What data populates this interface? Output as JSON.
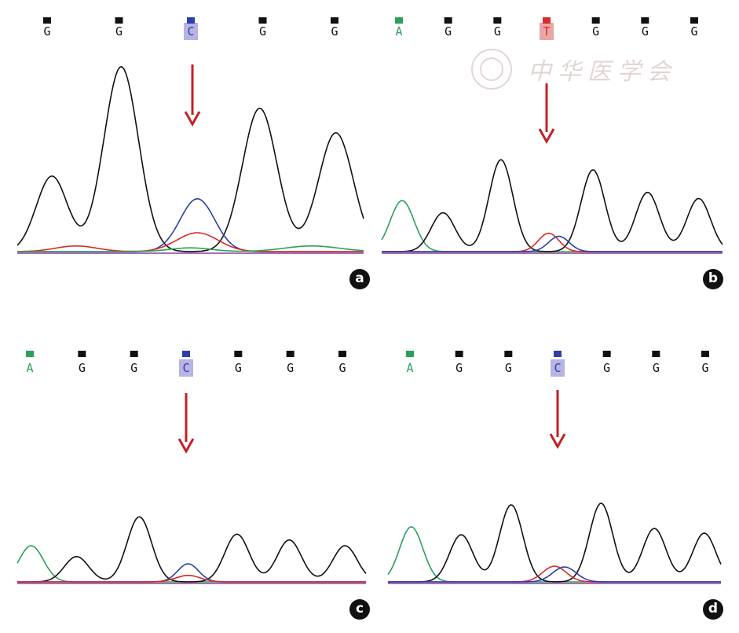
{
  "chart_data": [
    {
      "type": "line",
      "panel": "a",
      "bases": [
        "G",
        "G",
        "C",
        "G",
        "G"
      ],
      "marker_colors": [
        "#111111",
        "#111111",
        "#2c3ea8",
        "#111111",
        "#111111"
      ],
      "highlight_index": 2,
      "highlight_color": "#b7b3e3",
      "arrow_index": 2,
      "peaks": [
        {
          "series": "G",
          "color": "#111111",
          "center": 0.1,
          "height": 0.4,
          "width": 0.045
        },
        {
          "series": "G",
          "color": "#111111",
          "center": 0.3,
          "height": 0.98,
          "width": 0.05
        },
        {
          "series": "G",
          "color": "#111111",
          "center": 0.7,
          "height": 0.76,
          "width": 0.05
        },
        {
          "series": "G",
          "color": "#111111",
          "center": 0.92,
          "height": 0.63,
          "width": 0.05
        },
        {
          "series": "C",
          "color": "#2c3ea8",
          "center": 0.52,
          "height": 0.28,
          "width": 0.05
        },
        {
          "series": "T",
          "color": "#d62b2b",
          "center": 0.52,
          "height": 0.1,
          "width": 0.06
        },
        {
          "series": "T",
          "color": "#d62b2b",
          "center": 0.17,
          "height": 0.03,
          "width": 0.06
        },
        {
          "series": "A",
          "color": "#2aa05a",
          "center": 0.5,
          "height": 0.02,
          "width": 0.06
        },
        {
          "series": "A",
          "color": "#2aa05a",
          "center": 0.85,
          "height": 0.03,
          "width": 0.08
        }
      ]
    },
    {
      "type": "line",
      "panel": "b",
      "bases": [
        "A",
        "G",
        "G",
        "T",
        "G",
        "G",
        "G"
      ],
      "marker_colors": [
        "#2aa05a",
        "#111111",
        "#111111",
        "#d62b2b",
        "#111111",
        "#111111",
        "#111111"
      ],
      "highlight_index": 3,
      "highlight_color": "#e8a6a6",
      "arrow_index": 3,
      "peaks": [
        {
          "series": "A",
          "color": "#2aa05a",
          "center": 0.06,
          "height": 0.5,
          "width": 0.035
        },
        {
          "series": "G",
          "color": "#111111",
          "center": 0.18,
          "height": 0.38,
          "width": 0.035
        },
        {
          "series": "G",
          "color": "#111111",
          "center": 0.35,
          "height": 0.9,
          "width": 0.035
        },
        {
          "series": "G",
          "color": "#111111",
          "center": 0.62,
          "height": 0.8,
          "width": 0.035
        },
        {
          "series": "G",
          "color": "#111111",
          "center": 0.78,
          "height": 0.58,
          "width": 0.035
        },
        {
          "series": "G",
          "color": "#111111",
          "center": 0.93,
          "height": 0.52,
          "width": 0.035
        },
        {
          "series": "T",
          "color": "#d62b2b",
          "center": 0.49,
          "height": 0.18,
          "width": 0.03
        },
        {
          "series": "C",
          "color": "#2c3ea8",
          "center": 0.52,
          "height": 0.15,
          "width": 0.03
        }
      ]
    },
    {
      "type": "line",
      "panel": "c",
      "bases": [
        "A",
        "G",
        "G",
        "C",
        "G",
        "G",
        "G"
      ],
      "marker_colors": [
        "#2aa05a",
        "#111111",
        "#111111",
        "#2c3ea8",
        "#111111",
        "#111111",
        "#111111"
      ],
      "highlight_index": 3,
      "highlight_color": "#b7b3e3",
      "arrow_index": 3,
      "peaks": [
        {
          "series": "A",
          "color": "#2aa05a",
          "center": 0.04,
          "height": 0.5,
          "width": 0.035
        },
        {
          "series": "G",
          "color": "#111111",
          "center": 0.17,
          "height": 0.35,
          "width": 0.035
        },
        {
          "series": "G",
          "color": "#111111",
          "center": 0.35,
          "height": 0.9,
          "width": 0.035
        },
        {
          "series": "G",
          "color": "#111111",
          "center": 0.63,
          "height": 0.66,
          "width": 0.035
        },
        {
          "series": "G",
          "color": "#111111",
          "center": 0.78,
          "height": 0.58,
          "width": 0.035
        },
        {
          "series": "G",
          "color": "#111111",
          "center": 0.94,
          "height": 0.5,
          "width": 0.035
        },
        {
          "series": "C",
          "color": "#2c3ea8",
          "center": 0.49,
          "height": 0.25,
          "width": 0.03
        },
        {
          "series": "T",
          "color": "#d62b2b",
          "center": 0.49,
          "height": 0.09,
          "width": 0.035
        }
      ]
    },
    {
      "type": "line",
      "panel": "d",
      "bases": [
        "A",
        "G",
        "G",
        "C",
        "G",
        "G",
        "G"
      ],
      "marker_colors": [
        "#2aa05a",
        "#111111",
        "#111111",
        "#2c3ea8",
        "#111111",
        "#111111",
        "#111111"
      ],
      "highlight_index": 3,
      "highlight_color": "#b7b3e3",
      "arrow_index": 3,
      "peaks": [
        {
          "series": "A",
          "color": "#2aa05a",
          "center": 0.07,
          "height": 0.7,
          "width": 0.035
        },
        {
          "series": "G",
          "color": "#111111",
          "center": 0.22,
          "height": 0.6,
          "width": 0.035
        },
        {
          "series": "G",
          "color": "#111111",
          "center": 0.37,
          "height": 0.98,
          "width": 0.035
        },
        {
          "series": "G",
          "color": "#111111",
          "center": 0.64,
          "height": 1.0,
          "width": 0.035
        },
        {
          "series": "G",
          "color": "#111111",
          "center": 0.8,
          "height": 0.68,
          "width": 0.035
        },
        {
          "series": "G",
          "color": "#111111",
          "center": 0.95,
          "height": 0.62,
          "width": 0.035
        },
        {
          "series": "T",
          "color": "#d62b2b",
          "center": 0.5,
          "height": 0.2,
          "width": 0.035
        },
        {
          "series": "C",
          "color": "#2c3ea8",
          "center": 0.53,
          "height": 0.19,
          "width": 0.035
        }
      ]
    }
  ],
  "watermark": "中华医学会"
}
